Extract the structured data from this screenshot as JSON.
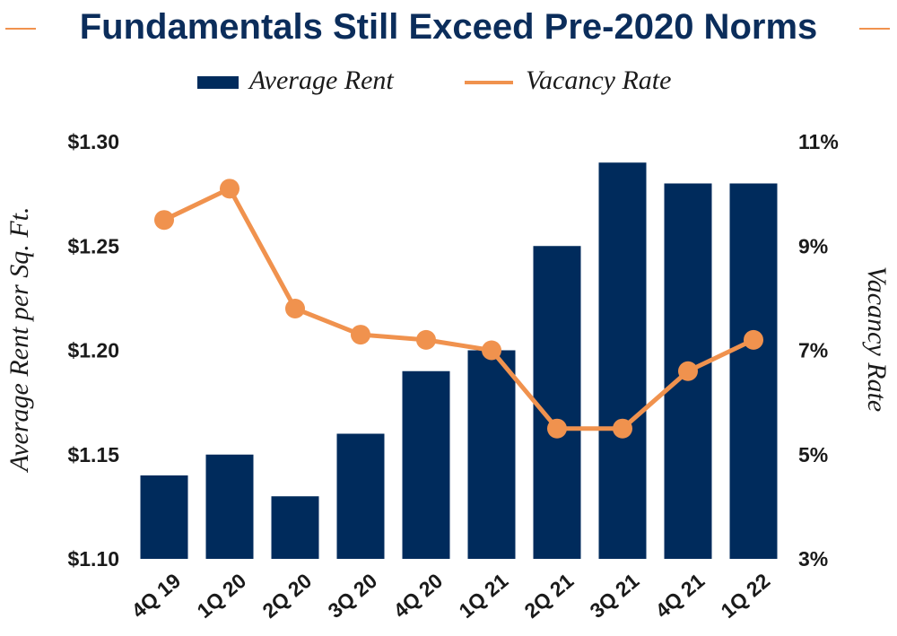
{
  "title": "Fundamentals Still Exceed Pre-2020 Norms",
  "colors": {
    "bar": "#002b5c",
    "line": "#f0924e",
    "title": "#0b2d5b",
    "text": "#1a1a1a"
  },
  "legend": {
    "rent_label": "Average Rent",
    "vacancy_label": "Vacancy Rate"
  },
  "chart_data": {
    "type": "bar",
    "title": "Fundamentals Still Exceed Pre-2020 Norms",
    "categories": [
      "4Q 19",
      "1Q 20",
      "2Q 20",
      "3Q 20",
      "4Q 20",
      "1Q 21",
      "2Q 21",
      "3Q 21",
      "4Q 21",
      "1Q 22"
    ],
    "series": [
      {
        "name": "Average Rent",
        "type": "bar",
        "axis": "left",
        "values": [
          1.14,
          1.15,
          1.13,
          1.16,
          1.19,
          1.2,
          1.25,
          1.29,
          1.28,
          1.28
        ]
      },
      {
        "name": "Vacancy Rate",
        "type": "line",
        "axis": "right",
        "values": [
          9.5,
          10.1,
          7.8,
          7.3,
          7.2,
          7.0,
          5.5,
          5.5,
          6.6,
          7.2
        ]
      }
    ],
    "ylabel": "Average Rent per Sq. Ft.",
    "ylim": [
      1.1,
      1.3
    ],
    "yticks": [
      "$1.30",
      "$1.25",
      "$1.20",
      "$1.15",
      "$1.10"
    ],
    "y2label": "Vacancy Rate",
    "y2lim": [
      3,
      11
    ],
    "y2ticks": [
      "11%",
      "9%",
      "7%",
      "5%",
      "3%"
    ],
    "grid": false,
    "legend_position": "top"
  }
}
